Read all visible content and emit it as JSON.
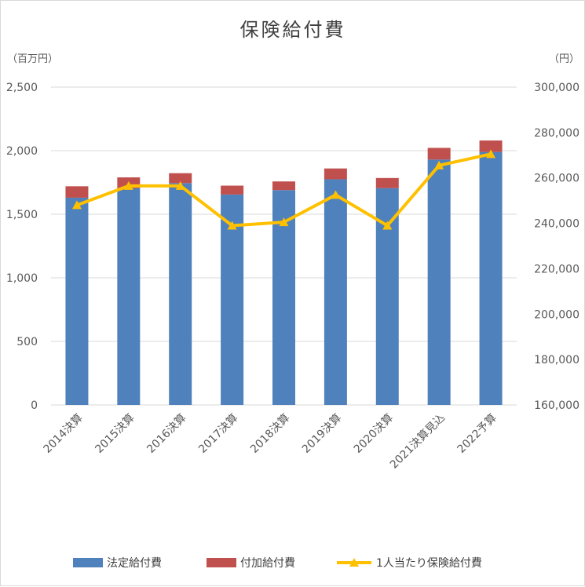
{
  "chart_data": {
    "type": "bar",
    "title": "保険給付費",
    "y_left_unit": "（百万円）",
    "y_right_unit": "（円）",
    "categories": [
      "2014決算",
      "2015決算",
      "2016決算",
      "2017決算",
      "2018決算",
      "2019決算",
      "2020決算",
      "2021決算見込",
      "2022予算"
    ],
    "series": [
      {
        "name": "法定給付費",
        "kind": "bar",
        "axis": "left",
        "color": "#4f81bd",
        "values": [
          1630,
          1705,
          1745,
          1655,
          1690,
          1775,
          1705,
          1930,
          1990
        ]
      },
      {
        "name": "付加給付費",
        "kind": "bar",
        "axis": "left",
        "color": "#c0504d",
        "values": [
          90,
          85,
          78,
          70,
          68,
          85,
          80,
          92,
          90
        ]
      },
      {
        "name": "1人当たり保険給付費",
        "kind": "line",
        "axis": "right",
        "color": "#ffc000",
        "values": [
          248000,
          256500,
          256500,
          239000,
          240500,
          252500,
          239000,
          265500,
          270500
        ]
      }
    ],
    "ylim_left": [
      0,
      2500
    ],
    "yticks_left": [
      "0",
      "500",
      "1,000",
      "1,500",
      "2,000",
      "2,500"
    ],
    "ylim_right": [
      160000,
      300000
    ],
    "yticks_right": [
      "160,000",
      "180,000",
      "200,000",
      "220,000",
      "240,000",
      "260,000",
      "280,000",
      "300,000"
    ],
    "grid": true,
    "legend_position": "bottom"
  }
}
